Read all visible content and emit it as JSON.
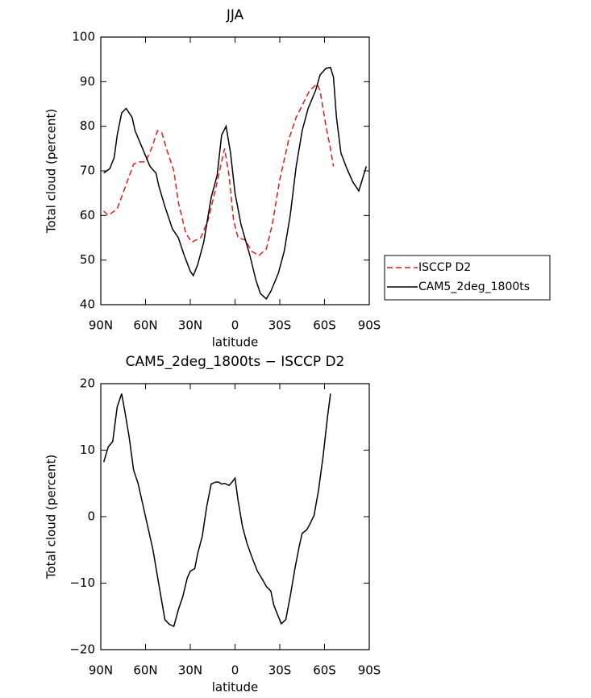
{
  "chart_data": [
    {
      "type": "line",
      "title": "JJA",
      "x_label": "latitude",
      "y_label": "Total cloud (percent)",
      "xlim": [
        90,
        -90
      ],
      "xticks": [
        {
          "value": 90,
          "label": "90N"
        },
        {
          "value": 60,
          "label": "60N"
        },
        {
          "value": 30,
          "label": "30N"
        },
        0,
        {
          "value": -30,
          "label": "30S"
        },
        {
          "value": -60,
          "label": "60S"
        },
        {
          "value": -90,
          "label": "90S"
        }
      ],
      "ylim": [
        40,
        100
      ],
      "yticks": [
        40,
        50,
        60,
        70,
        80,
        90,
        100
      ],
      "legend": "outside right",
      "series": [
        {
          "name": "ISCCP D2",
          "color": "#e41a1c",
          "linestyle": "dashed",
          "x": [
            88,
            85,
            79,
            74,
            68,
            65,
            60,
            56,
            52,
            49,
            46,
            41,
            38,
            33,
            29,
            23,
            18,
            13,
            9,
            7,
            4,
            1,
            -2,
            -7,
            -11,
            -16,
            -21,
            -25,
            -30,
            -36,
            -41,
            -47,
            -50,
            -55,
            -57,
            -61,
            -64,
            -66
          ],
          "values": [
            61,
            60,
            61.5,
            66,
            71.5,
            72,
            72,
            75,
            79,
            78.5,
            75,
            70,
            63,
            56,
            54,
            55,
            59,
            66,
            72,
            75,
            69,
            59,
            55,
            54.5,
            52,
            51,
            52.5,
            58,
            68,
            77,
            82,
            86,
            88,
            89.5,
            88,
            80,
            75,
            71
          ]
        },
        {
          "name": "CAM5_2deg_1800ts",
          "color": "#000000",
          "linestyle": "solid",
          "x": [
            88,
            84,
            81,
            79,
            76,
            73,
            69,
            67,
            62,
            57,
            53,
            51,
            47,
            42,
            38,
            34,
            30,
            28,
            25,
            21,
            16,
            12,
            9,
            6,
            3,
            0,
            -4,
            -10,
            -14,
            -17,
            -21,
            -24,
            -29,
            -33,
            -37,
            -41,
            -45,
            -49,
            -54,
            -57,
            -61,
            -64,
            -66,
            -68,
            -71,
            -75,
            -79,
            -83,
            -88
          ],
          "values": [
            69.5,
            70.5,
            73,
            78,
            83,
            84,
            82,
            79,
            75,
            71,
            69.5,
            66.5,
            62,
            57,
            55,
            51,
            47.5,
            46.5,
            49,
            54,
            64,
            69,
            78,
            80,
            74,
            65,
            58,
            51,
            45.5,
            42.5,
            41.3,
            43,
            47,
            52,
            60,
            71,
            79,
            84,
            88,
            91.5,
            93,
            93.2,
            91,
            82,
            74,
            70.5,
            67.5,
            65.5,
            71
          ]
        }
      ]
    },
    {
      "type": "line",
      "title": "CAM5_2deg_1800ts − ISCCP D2",
      "x_label": "latitude",
      "y_label": "Total cloud (percent)",
      "xlim": [
        90,
        -90
      ],
      "xticks": [
        {
          "value": 90,
          "label": "90N"
        },
        {
          "value": 60,
          "label": "60N"
        },
        {
          "value": 30,
          "label": "30N"
        },
        0,
        {
          "value": -30,
          "label": "30S"
        },
        {
          "value": -60,
          "label": "60S"
        },
        {
          "value": -90,
          "label": "90S"
        }
      ],
      "ylim": [
        -20,
        20
      ],
      "yticks": [
        {
          "value": -20,
          "label": "−20"
        },
        {
          "value": -10,
          "label": "−10"
        },
        0,
        10,
        20
      ],
      "color": "#000000",
      "x": [
        88,
        85,
        82,
        79,
        76,
        74,
        71,
        68,
        65,
        62,
        58,
        55,
        52,
        47,
        44,
        41,
        38,
        35,
        32,
        30,
        27,
        25,
        22,
        19,
        16,
        13,
        11,
        9,
        7,
        4,
        2,
        0,
        -2,
        -5,
        -8,
        -12,
        -15,
        -18,
        -21,
        -24,
        -26,
        -29,
        -31,
        -34,
        -37,
        -40,
        -43,
        -45,
        -48,
        -50,
        -53,
        -56,
        -59,
        -62,
        -64
      ],
      "values": [
        8.2,
        10.5,
        11.3,
        16.5,
        18.5,
        16,
        12,
        7,
        5,
        2,
        -2,
        -5,
        -9,
        -15.5,
        -16.2,
        -16.5,
        -14,
        -12,
        -9.2,
        -8.2,
        -7.8,
        -5.5,
        -3,
        1.5,
        4.9,
        5.2,
        5.2,
        4.9,
        5,
        4.7,
        5.2,
        5.8,
        2.5,
        -1.5,
        -4,
        -6.5,
        -8.2,
        -9.3,
        -10.5,
        -11.2,
        -13.3,
        -15,
        -16.1,
        -15.5,
        -12,
        -8,
        -4.5,
        -2.5,
        -2,
        -1.2,
        0.2,
        4,
        9,
        15,
        18.5
      ]
    }
  ]
}
